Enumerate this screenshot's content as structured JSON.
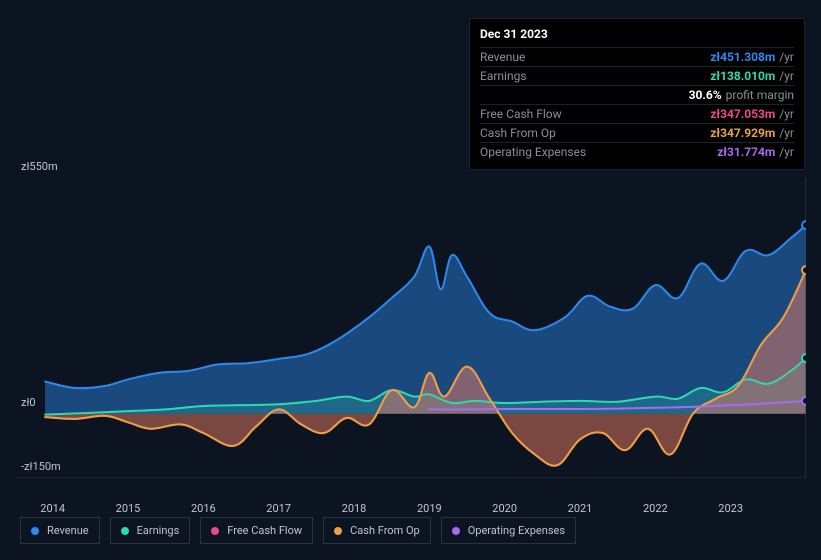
{
  "tooltip": {
    "date": "Dec 31 2023",
    "rows": [
      {
        "label": "Revenue",
        "value": "zł451.308m",
        "unit": "/yr",
        "color": "#2a8af0"
      },
      {
        "label": "Earnings",
        "value": "zł138.010m",
        "unit": "/yr",
        "color": "#2fd8b1"
      },
      {
        "label": "",
        "value": "30.6%",
        "unit": "profit margin",
        "color": "#ffffff"
      },
      {
        "label": "Free Cash Flow",
        "value": "zł347.053m",
        "unit": "/yr",
        "color": "#e84b8a"
      },
      {
        "label": "Cash From Op",
        "value": "zł347.929m",
        "unit": "/yr",
        "color": "#e8a243"
      },
      {
        "label": "Operating Expenses",
        "value": "zł31.774m",
        "unit": "/yr",
        "color": "#a56bf0"
      }
    ]
  },
  "chart": {
    "type": "area",
    "background": "#0d1421",
    "ylim": [
      -150,
      550
    ],
    "yticks": [
      {
        "v": 550,
        "label": "zł550m"
      },
      {
        "v": 0,
        "label": "zł0"
      },
      {
        "v": -150,
        "label": "-zł150m"
      }
    ],
    "xlim": [
      2013.5,
      2024
    ],
    "xticks": [
      2014,
      2015,
      2016,
      2017,
      2018,
      2019,
      2020,
      2021,
      2022,
      2023
    ],
    "hover_x": 2024,
    "series": [
      {
        "name": "Revenue",
        "color": "#2a8af0",
        "fill_opacity": 0.45,
        "data": [
          [
            2013.9,
            75
          ],
          [
            2014.3,
            60
          ],
          [
            2014.7,
            65
          ],
          [
            2015.0,
            80
          ],
          [
            2015.4,
            95
          ],
          [
            2015.8,
            100
          ],
          [
            2016.2,
            115
          ],
          [
            2016.6,
            118
          ],
          [
            2017.0,
            128
          ],
          [
            2017.4,
            140
          ],
          [
            2017.8,
            175
          ],
          [
            2018.2,
            225
          ],
          [
            2018.5,
            270
          ],
          [
            2018.8,
            320
          ],
          [
            2019.0,
            390
          ],
          [
            2019.15,
            290
          ],
          [
            2019.3,
            370
          ],
          [
            2019.5,
            320
          ],
          [
            2019.8,
            235
          ],
          [
            2020.1,
            215
          ],
          [
            2020.4,
            195
          ],
          [
            2020.8,
            225
          ],
          [
            2021.1,
            275
          ],
          [
            2021.4,
            250
          ],
          [
            2021.7,
            245
          ],
          [
            2022.0,
            300
          ],
          [
            2022.3,
            270
          ],
          [
            2022.6,
            350
          ],
          [
            2022.9,
            310
          ],
          [
            2023.2,
            380
          ],
          [
            2023.5,
            370
          ],
          [
            2023.8,
            410
          ],
          [
            2024.0,
            440
          ]
        ],
        "marker_end": 440
      },
      {
        "name": "Earnings",
        "color": "#2fd8b1",
        "fill_opacity": 0.22,
        "data": [
          [
            2013.9,
            -2
          ],
          [
            2014.5,
            2
          ],
          [
            2015.0,
            6
          ],
          [
            2015.5,
            10
          ],
          [
            2016.0,
            18
          ],
          [
            2016.5,
            20
          ],
          [
            2017.0,
            22
          ],
          [
            2017.5,
            30
          ],
          [
            2017.9,
            40
          ],
          [
            2018.2,
            30
          ],
          [
            2018.5,
            55
          ],
          [
            2018.8,
            40
          ],
          [
            2019.0,
            45
          ],
          [
            2019.3,
            25
          ],
          [
            2019.6,
            30
          ],
          [
            2020.0,
            25
          ],
          [
            2020.5,
            28
          ],
          [
            2021.0,
            30
          ],
          [
            2021.5,
            28
          ],
          [
            2022.0,
            40
          ],
          [
            2022.3,
            35
          ],
          [
            2022.6,
            60
          ],
          [
            2022.9,
            50
          ],
          [
            2023.2,
            80
          ],
          [
            2023.5,
            70
          ],
          [
            2023.8,
            100
          ],
          [
            2024.0,
            130
          ]
        ],
        "marker_end": 130
      },
      {
        "name": "Free Cash Flow",
        "color": "#e84b8a",
        "fill_opacity": 0.3,
        "data": [
          [
            2013.9,
            -8
          ],
          [
            2014.3,
            -12
          ],
          [
            2014.7,
            -5
          ],
          [
            2015.0,
            -20
          ],
          [
            2015.3,
            -35
          ],
          [
            2015.7,
            -25
          ],
          [
            2016.0,
            -45
          ],
          [
            2016.4,
            -75
          ],
          [
            2016.7,
            -30
          ],
          [
            2017.0,
            10
          ],
          [
            2017.3,
            -25
          ],
          [
            2017.6,
            -45
          ],
          [
            2017.9,
            -10
          ],
          [
            2018.2,
            -25
          ],
          [
            2018.5,
            55
          ],
          [
            2018.8,
            15
          ],
          [
            2019.0,
            95
          ],
          [
            2019.2,
            40
          ],
          [
            2019.5,
            110
          ],
          [
            2019.8,
            35
          ],
          [
            2020.1,
            -45
          ],
          [
            2020.4,
            -95
          ],
          [
            2020.7,
            -120
          ],
          [
            2021.0,
            -60
          ],
          [
            2021.3,
            -45
          ],
          [
            2021.6,
            -85
          ],
          [
            2021.9,
            -35
          ],
          [
            2022.2,
            -95
          ],
          [
            2022.5,
            0
          ],
          [
            2022.8,
            35
          ],
          [
            2023.1,
            65
          ],
          [
            2023.4,
            160
          ],
          [
            2023.7,
            225
          ],
          [
            2024.0,
            335
          ]
        ],
        "marker_end": 335
      },
      {
        "name": "Cash From Op",
        "color": "#e8a243",
        "fill_opacity": 0.28,
        "data": [
          [
            2013.9,
            -8
          ],
          [
            2014.3,
            -12
          ],
          [
            2014.7,
            -5
          ],
          [
            2015.0,
            -20
          ],
          [
            2015.3,
            -35
          ],
          [
            2015.7,
            -25
          ],
          [
            2016.0,
            -45
          ],
          [
            2016.4,
            -75
          ],
          [
            2016.7,
            -30
          ],
          [
            2017.0,
            10
          ],
          [
            2017.3,
            -25
          ],
          [
            2017.6,
            -45
          ],
          [
            2017.9,
            -10
          ],
          [
            2018.2,
            -25
          ],
          [
            2018.5,
            55
          ],
          [
            2018.8,
            15
          ],
          [
            2019.0,
            95
          ],
          [
            2019.2,
            40
          ],
          [
            2019.5,
            110
          ],
          [
            2019.8,
            35
          ],
          [
            2020.1,
            -45
          ],
          [
            2020.4,
            -95
          ],
          [
            2020.7,
            -120
          ],
          [
            2021.0,
            -60
          ],
          [
            2021.3,
            -45
          ],
          [
            2021.6,
            -85
          ],
          [
            2021.9,
            -35
          ],
          [
            2022.2,
            -95
          ],
          [
            2022.5,
            0
          ],
          [
            2022.8,
            35
          ],
          [
            2023.1,
            65
          ],
          [
            2023.4,
            160
          ],
          [
            2023.7,
            225
          ],
          [
            2024.0,
            335
          ]
        ],
        "marker_end": 335
      },
      {
        "name": "Operating Expenses",
        "color": "#a56bf0",
        "fill_opacity": 0,
        "data": [
          [
            2019.0,
            10
          ],
          [
            2019.5,
            10
          ],
          [
            2020.0,
            11
          ],
          [
            2020.5,
            11
          ],
          [
            2021.0,
            11
          ],
          [
            2021.5,
            12
          ],
          [
            2022.0,
            14
          ],
          [
            2022.5,
            16
          ],
          [
            2023.0,
            20
          ],
          [
            2023.5,
            24
          ],
          [
            2024.0,
            30
          ]
        ],
        "marker_end": 30
      }
    ],
    "legend": [
      {
        "label": "Revenue",
        "color": "#2a8af0"
      },
      {
        "label": "Earnings",
        "color": "#2fd8b1"
      },
      {
        "label": "Free Cash Flow",
        "color": "#e84b8a"
      },
      {
        "label": "Cash From Op",
        "color": "#e8a243"
      },
      {
        "label": "Operating Expenses",
        "color": "#a56bf0"
      }
    ]
  }
}
